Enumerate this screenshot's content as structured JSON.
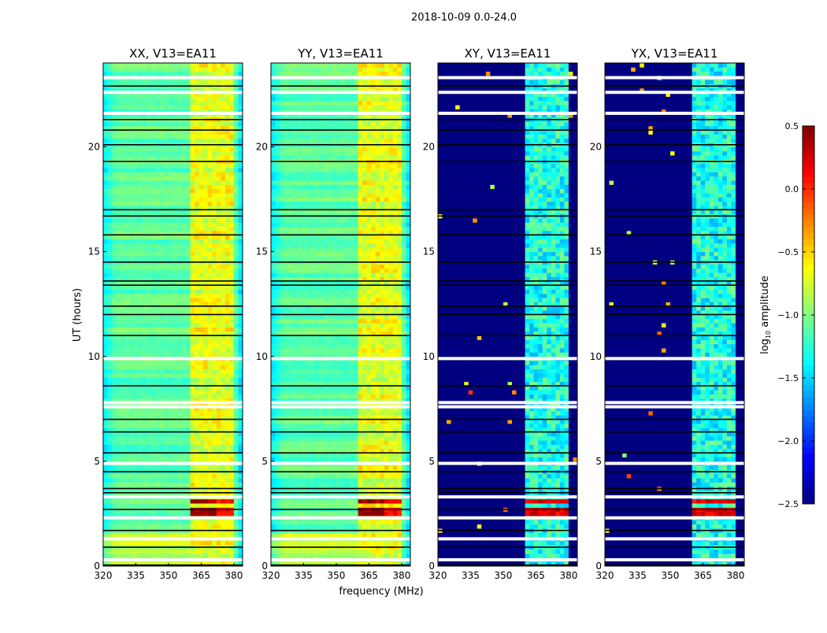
{
  "chart_data": {
    "type": "heatmap",
    "title": "2018-10-09 0.0-24.0",
    "xlabel": "frequency (MHz)",
    "ylabel": "UT (hours)",
    "xlim": [
      320,
      384
    ],
    "ylim": [
      0,
      24
    ],
    "x_ticks": [
      "320",
      "335",
      "350",
      "365",
      "380"
    ],
    "y_ticks": [
      "0",
      "5",
      "10",
      "15",
      "20"
    ],
    "panels": [
      {
        "title": "XX, V13=EA11",
        "kind": "parallel"
      },
      {
        "title": "YY, V13=EA11",
        "kind": "parallel"
      },
      {
        "title": "XY, V13=EA11",
        "kind": "cross"
      },
      {
        "title": "YX, V13=EA11",
        "kind": "cross"
      }
    ],
    "colorbar": {
      "label_prefix": "log",
      "label_sub": "10",
      "label_suffix": " amplitude",
      "range": [
        -2.5,
        0.5
      ],
      "ticks": [
        "0.5",
        "0.0",
        "−0.5",
        "−1.0",
        "−1.5",
        "−2.0",
        "−2.5"
      ],
      "colormap": "jet"
    },
    "levels": {
      "parallel_base": -1.1,
      "parallel_band": -0.75,
      "cross_base": -2.5,
      "cross_band": -1.3,
      "flare": 0.4
    },
    "sub_bands_mhz": [
      [
        361,
        365
      ],
      [
        366,
        370
      ],
      [
        370.5,
        375
      ],
      [
        375.5,
        380
      ]
    ],
    "flare_hours": [
      [
        2.85,
        3.05
      ],
      [
        2.35,
        2.6
      ]
    ],
    "flagged_black_hours": [
      22.9,
      21.3,
      20.8,
      20.1,
      19.3,
      17.0,
      16.7,
      15.8,
      14.5,
      13.6,
      13.4,
      12.4,
      12.0,
      11.0,
      8.6,
      7.0,
      6.4,
      5.4,
      4.5,
      3.7,
      3.5,
      2.7,
      1.7,
      0.9,
      0.05
    ],
    "flagged_white_hours": [
      23.3,
      22.6,
      21.6,
      9.9,
      7.8,
      7.6,
      4.9,
      3.3,
      2.3,
      1.3,
      0.3
    ]
  }
}
